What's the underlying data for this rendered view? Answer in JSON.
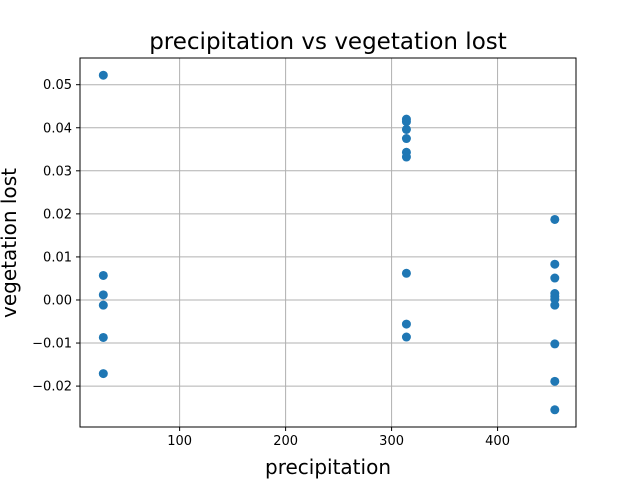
{
  "chart_data": {
    "type": "scatter",
    "title": "precipitation vs vegetation lost",
    "xlabel": "precipitation",
    "ylabel": "vegetation lost",
    "xlim": [
      6,
      474
    ],
    "ylim": [
      -0.0295,
      0.0562
    ],
    "x_ticks": [
      {
        "value": 100,
        "label": "100"
      },
      {
        "value": 200,
        "label": "200"
      },
      {
        "value": 300,
        "label": "300"
      },
      {
        "value": 400,
        "label": "400"
      }
    ],
    "y_ticks": [
      {
        "value": -0.02,
        "label": "−0.02"
      },
      {
        "value": -0.01,
        "label": "−0.01"
      },
      {
        "value": 0.0,
        "label": "0.00"
      },
      {
        "value": 0.01,
        "label": "0.01"
      },
      {
        "value": 0.02,
        "label": "0.02"
      },
      {
        "value": 0.03,
        "label": "0.03"
      },
      {
        "value": 0.04,
        "label": "0.04"
      },
      {
        "value": 0.05,
        "label": "0.05"
      }
    ],
    "grid": true,
    "marker_color": "#1f77b4",
    "series": [
      {
        "x": [
          28,
          28,
          28,
          28,
          28,
          28,
          314,
          314,
          314,
          314,
          314,
          314,
          314,
          314,
          314,
          454,
          454,
          454,
          454,
          454,
          454,
          454,
          454,
          454,
          454
        ],
        "y": [
          0.0522,
          0.0057,
          0.0012,
          -0.0012,
          -0.0087,
          -0.0171,
          0.042,
          0.0396,
          0.0375,
          0.0343,
          0.0332,
          0.0062,
          -0.0056,
          -0.0086,
          0.0414,
          0.0187,
          0.0083,
          0.0051,
          0.0015,
          0.0008,
          -0.0012,
          -0.0102,
          -0.0189,
          -0.0255,
          0.0002
        ]
      }
    ]
  }
}
